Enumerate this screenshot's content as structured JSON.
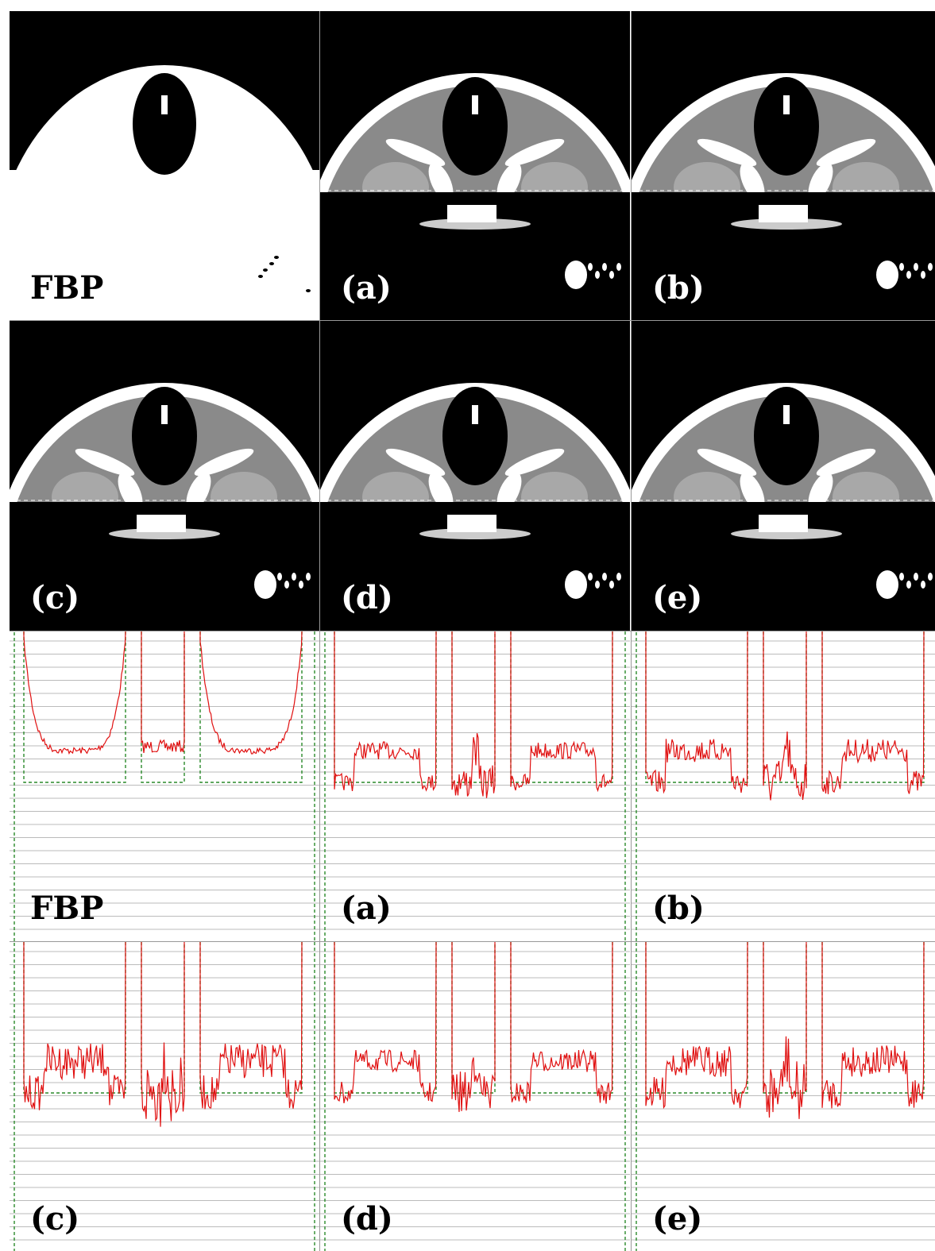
{
  "image_panels": [
    {
      "label": "FBP"
    },
    {
      "label": "(a)"
    },
    {
      "label": "(b)"
    },
    {
      "label": "(c)"
    },
    {
      "label": "(d)"
    },
    {
      "label": "(e)"
    }
  ],
  "profile_panels": [
    {
      "label": "FBP"
    },
    {
      "label": "(a)"
    },
    {
      "label": "(b)"
    },
    {
      "label": "(c)"
    },
    {
      "label": "(d)"
    },
    {
      "label": "(e)"
    }
  ]
}
